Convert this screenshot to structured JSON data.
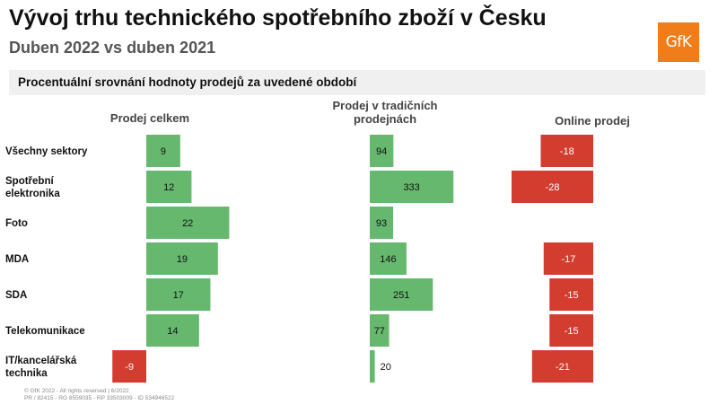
{
  "header": {
    "title": "Vývoj trhu technického spotřebního zboží v Česku",
    "subtitle": "Duben 2022 vs duben 2021",
    "logo_text": "GfK",
    "banner": "Procentuální srovnání hodnoty prodejů za uvedené období"
  },
  "footer": {
    "line1": "© GfK 2022 - All rights reserved | 6/2022",
    "line2": "PR / 82415 - RG 8559035 - RP 33503009 - ID 534946522"
  },
  "colors": {
    "positive": "#66b86e",
    "negative": "#d23d30"
  },
  "chart_data": {
    "type": "bar",
    "orientation": "horizontal",
    "categories": [
      [
        "Všechny sektory"
      ],
      [
        "Spotřební",
        "elektronika"
      ],
      [
        "Foto"
      ],
      [
        "MDA"
      ],
      [
        "SDA"
      ],
      [
        "Telekomunikace"
      ],
      [
        "IT/kancelářská",
        "technika"
      ]
    ],
    "series": [
      {
        "name": [
          "Prodej celkem"
        ],
        "values": [
          9,
          12,
          22,
          19,
          17,
          14,
          -9
        ]
      },
      {
        "name": [
          "Prodej v tradičních",
          "prodejnách"
        ],
        "values": [
          94,
          333,
          93,
          146,
          251,
          77,
          20
        ]
      },
      {
        "name": [
          "Online prodej"
        ],
        "values": [
          -18,
          -28,
          null,
          -17,
          -15,
          -15,
          -21
        ]
      }
    ]
  }
}
